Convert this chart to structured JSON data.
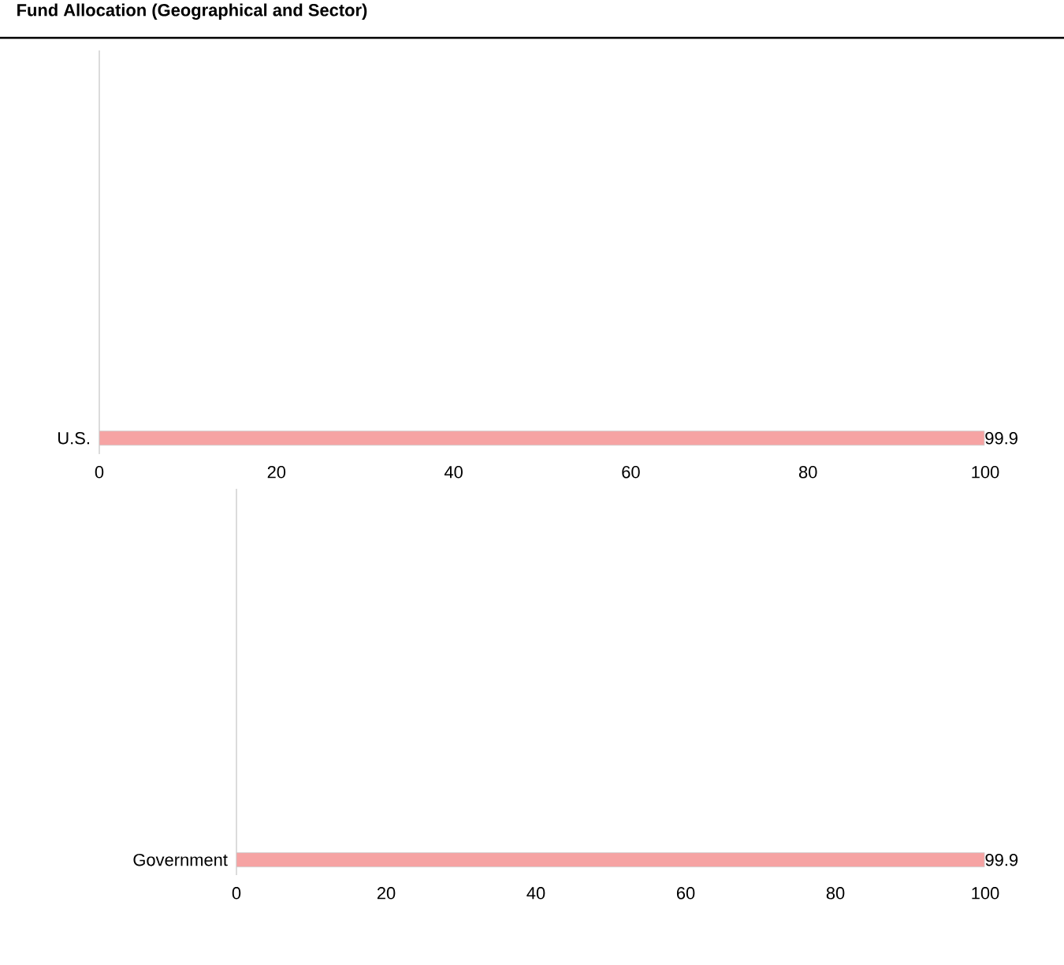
{
  "chart_data": [
    {
      "type": "bar",
      "title": "Fund Allocation (Geographical and Sector)",
      "orientation": "horizontal",
      "categories": [
        "U.S."
      ],
      "values": [
        99.9
      ],
      "color": "#f6a3a3",
      "xlim": [
        0,
        100
      ],
      "xticks": [
        0,
        20,
        40,
        60,
        80,
        100
      ],
      "data_labels": true
    },
    {
      "type": "bar",
      "orientation": "horizontal",
      "categories": [
        "Government"
      ],
      "values": [
        99.9
      ],
      "color": "#f6a3a3",
      "xlim": [
        0,
        100
      ],
      "xticks": [
        0,
        20,
        40,
        60,
        80,
        100
      ],
      "data_labels": true
    }
  ]
}
